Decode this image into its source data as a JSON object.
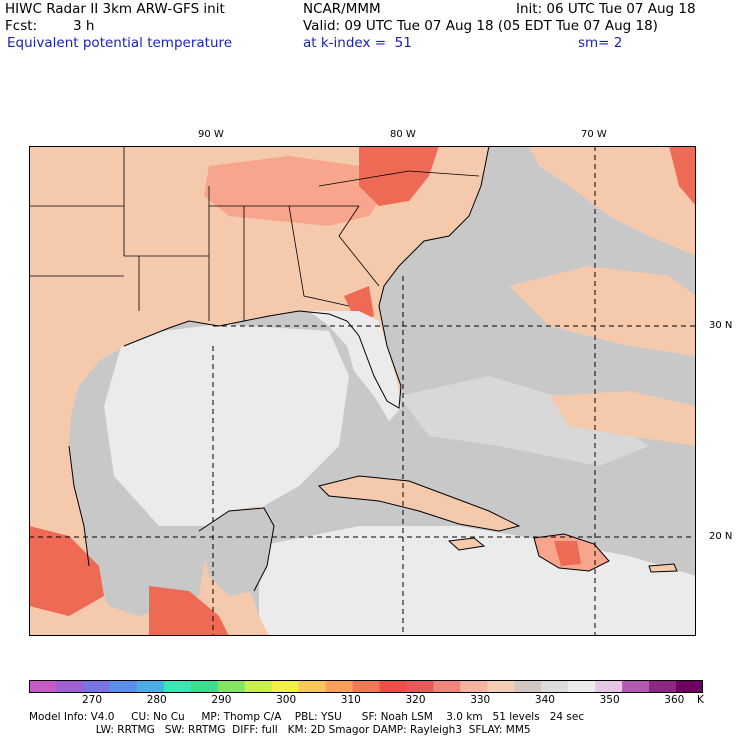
{
  "header": {
    "model": "HIWC Radar II 3km ARW-GFS init",
    "org": "NCAR/MMM",
    "init": "Init: 06 UTC Tue 07 Aug 18",
    "fcst_label": "Fcst:",
    "fcst_value": "3 h",
    "valid": "Valid: 09 UTC Tue 07 Aug 18 (05 EDT Tue 07 Aug 18)",
    "field": "Equivalent potential temperature",
    "level": "at k-index =  51",
    "smooth": "sm= 2"
  },
  "map": {
    "lon_labels": [
      "90 W",
      "80 W",
      "70 W"
    ],
    "lat_labels": [
      "30 N",
      "20 N"
    ],
    "colors": {
      "ocean_gray": "#c8c8c8",
      "ocean_light": "#ebebeb",
      "tan": "#f5c9ac",
      "salmon": "#f7a58c",
      "red": "#ef6a55",
      "border": "#000000",
      "grid": "#000000"
    }
  },
  "colorbar": {
    "unit": "K",
    "ticks": [
      "270",
      "280",
      "290",
      "300",
      "310",
      "320",
      "330",
      "340",
      "350",
      "360"
    ],
    "colors": [
      "#c85ac8",
      "#a05fd2",
      "#7a73e6",
      "#5a8ff0",
      "#4aaee6",
      "#3ce6b4",
      "#3cdc8c",
      "#82e664",
      "#c8f050",
      "#f0f046",
      "#fac85a",
      "#faa05a",
      "#f57855",
      "#ef4f46",
      "#e65a5a",
      "#f0867a",
      "#f5b4a0",
      "#f5cdb4",
      "#d2c8c3",
      "#dcdcdc",
      "#ececec",
      "#e6c8e6",
      "#b45ab4",
      "#8c2882",
      "#6e0064"
    ]
  },
  "footer": {
    "line1": "Model Info: V4.0     CU: No Cu     MP: Thomp C/A    PBL: YSU      SF: Noah LSM    3.0 km   51 levels   24 sec",
    "line2": "                    LW: RRTMG   SW: RRTMG  DIFF: full   KM: 2D Smagor DAMP: Rayleigh3  SFLAY: MM5"
  }
}
